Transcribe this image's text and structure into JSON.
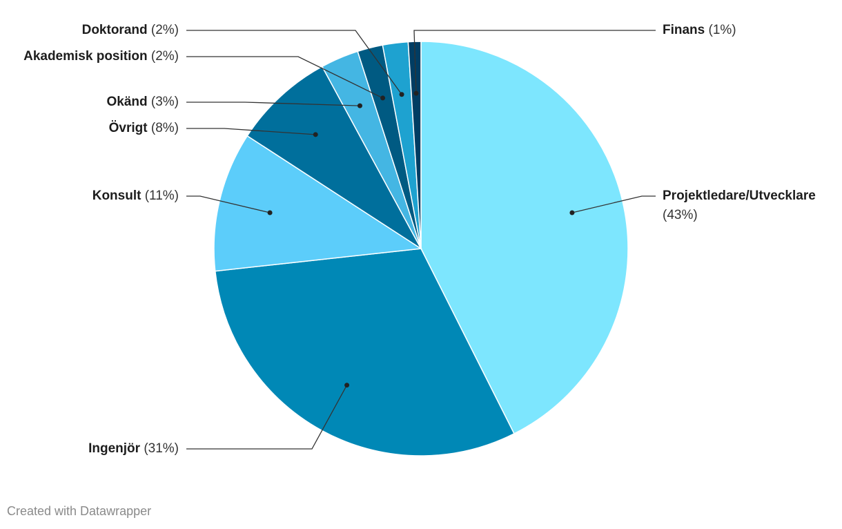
{
  "chart_data": {
    "type": "pie",
    "categories": [
      "Projektledare/Utvecklare",
      "Ingenjör",
      "Konsult",
      "Övrigt",
      "Okänd",
      "Akademisk position",
      "Doktorand",
      "Finans"
    ],
    "values": [
      43,
      31,
      11,
      8,
      3,
      2,
      2,
      1
    ],
    "value_labels": [
      "(43%)",
      "(31%)",
      "(11%)",
      "(8%)",
      "(3%)",
      "(2%)",
      "(2%)",
      "(1%)"
    ],
    "colors": [
      "#7de6fe",
      "#0088b6",
      "#5ccdfa",
      "#006f9c",
      "#44b6e3",
      "#005a82",
      "#1ea2d0",
      "#003d63"
    ],
    "footer": "Created with Datawrapper"
  }
}
